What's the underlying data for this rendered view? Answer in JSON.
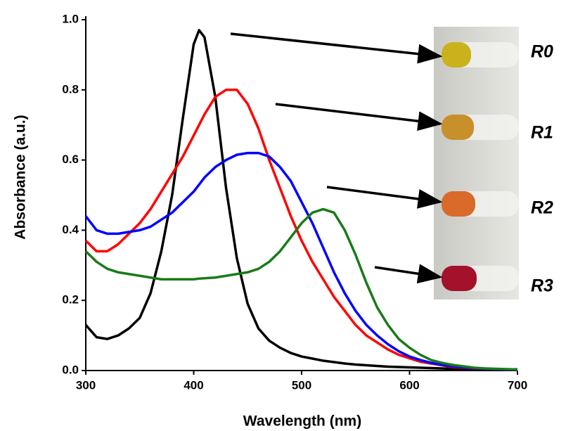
{
  "chart_data": {
    "type": "line",
    "x_label": "Wavelength (nm)",
    "y_label": "Absorbance (a.u.)",
    "xlim": [
      300,
      700
    ],
    "xticks": [
      300,
      400,
      500,
      600,
      700
    ],
    "ylim": [
      0,
      1
    ],
    "yticks": [
      {
        "value": 0,
        "label": "0.0"
      },
      0.2,
      0.4,
      0.6,
      0.8,
      {
        "value": 1,
        "label": "1.0"
      }
    ],
    "x": [
      300,
      310,
      320,
      330,
      340,
      350,
      360,
      370,
      380,
      390,
      400,
      405,
      410,
      420,
      430,
      440,
      450,
      460,
      470,
      480,
      490,
      500,
      510,
      520,
      530,
      540,
      550,
      560,
      570,
      580,
      590,
      600,
      610,
      620,
      630,
      640,
      650,
      660,
      670,
      680,
      690,
      700
    ],
    "series": [
      {
        "name": "R0",
        "color": "#000000",
        "values": [
          0.13,
          0.095,
          0.09,
          0.1,
          0.12,
          0.15,
          0.22,
          0.34,
          0.5,
          0.72,
          0.93,
          0.97,
          0.95,
          0.78,
          0.52,
          0.32,
          0.19,
          0.12,
          0.085,
          0.065,
          0.05,
          0.04,
          0.034,
          0.028,
          0.024,
          0.02,
          0.017,
          0.015,
          0.013,
          0.011,
          0.01,
          0.009,
          0.008,
          0.007,
          0.006,
          0.005,
          0.005,
          0.004,
          0.004,
          0.003,
          0.003,
          0.003
        ]
      },
      {
        "name": "R1",
        "color": "#ff0000",
        "values": [
          0.37,
          0.34,
          0.34,
          0.36,
          0.39,
          0.42,
          0.46,
          0.51,
          0.56,
          0.61,
          0.67,
          0.7,
          0.73,
          0.78,
          0.8,
          0.8,
          0.76,
          0.69,
          0.6,
          0.52,
          0.44,
          0.37,
          0.31,
          0.26,
          0.21,
          0.17,
          0.13,
          0.1,
          0.08,
          0.06,
          0.045,
          0.035,
          0.025,
          0.02,
          0.015,
          0.01,
          0.008,
          0.006,
          0.005,
          0.004,
          0.003,
          0.003
        ]
      },
      {
        "name": "R2",
        "color": "#0000ff",
        "values": [
          0.44,
          0.4,
          0.39,
          0.39,
          0.395,
          0.4,
          0.41,
          0.43,
          0.45,
          0.48,
          0.51,
          0.53,
          0.55,
          0.58,
          0.6,
          0.615,
          0.62,
          0.62,
          0.61,
          0.58,
          0.54,
          0.48,
          0.42,
          0.35,
          0.28,
          0.22,
          0.17,
          0.13,
          0.1,
          0.075,
          0.055,
          0.04,
          0.03,
          0.022,
          0.016,
          0.012,
          0.009,
          0.007,
          0.005,
          0.004,
          0.003,
          0.003
        ]
      },
      {
        "name": "R3",
        "color": "#1a7a1a",
        "values": [
          0.34,
          0.31,
          0.29,
          0.28,
          0.275,
          0.27,
          0.265,
          0.26,
          0.26,
          0.26,
          0.26,
          0.262,
          0.263,
          0.265,
          0.27,
          0.275,
          0.28,
          0.29,
          0.31,
          0.34,
          0.38,
          0.42,
          0.45,
          0.46,
          0.45,
          0.4,
          0.33,
          0.25,
          0.18,
          0.13,
          0.09,
          0.065,
          0.045,
          0.03,
          0.022,
          0.016,
          0.012,
          0.008,
          0.006,
          0.005,
          0.004,
          0.003
        ]
      }
    ]
  }
}
